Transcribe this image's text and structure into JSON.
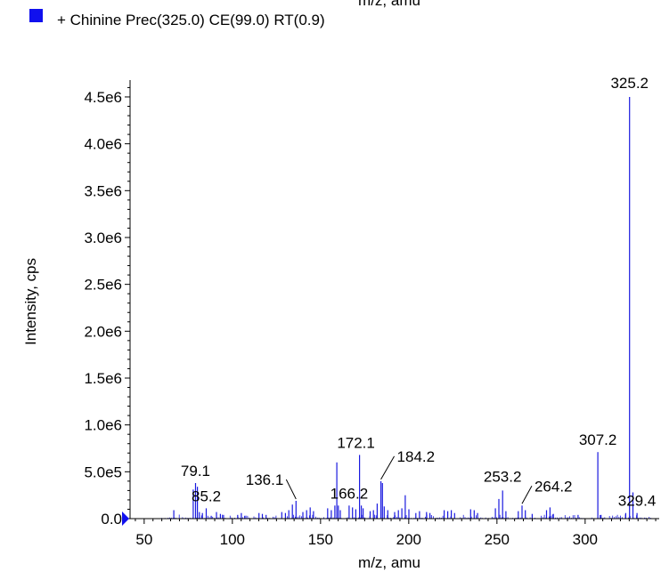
{
  "top_cut_label": "m/z, amu",
  "legend": {
    "swatch_color": "#1010ee",
    "label": "+ Chinine Prec(325.0) CE(99.0) RT(0.9)"
  },
  "colors": {
    "series": "#1a1adf",
    "axis": "#000000",
    "marker": "#1010ee"
  },
  "chart_data": {
    "type": "bar",
    "title": "",
    "xlabel": "m/z, amu",
    "ylabel": "Intensity, cps",
    "xlim": [
      42,
      342
    ],
    "ylim": [
      0,
      4680000
    ],
    "grid": false,
    "x_ticks": [
      50,
      100,
      150,
      200,
      250,
      300
    ],
    "x_tick_labels": [
      "50",
      "100",
      "150",
      "200",
      "250",
      "300"
    ],
    "y_ticks": [
      0,
      500000,
      1000000,
      1500000,
      2000000,
      2500000,
      3000000,
      3500000,
      4000000,
      4500000
    ],
    "y_tick_labels": [
      "0.0",
      "5.0e5",
      "1.0e6",
      "1.5e6",
      "2.0e6",
      "2.5e6",
      "3.0e6",
      "3.5e6",
      "4.0e6",
      "4.5e6"
    ],
    "peaks": [
      {
        "mz": 66.8,
        "i": 90000
      },
      {
        "mz": 77.8,
        "i": 310000
      },
      {
        "mz": 79.1,
        "i": 380000
      },
      {
        "mz": 80.2,
        "i": 340000
      },
      {
        "mz": 81.3,
        "i": 70000
      },
      {
        "mz": 83.0,
        "i": 60000
      },
      {
        "mz": 85.2,
        "i": 110000
      },
      {
        "mz": 88.0,
        "i": 30000
      },
      {
        "mz": 91.0,
        "i": 70000
      },
      {
        "mz": 93.2,
        "i": 50000
      },
      {
        "mz": 95.0,
        "i": 40000
      },
      {
        "mz": 103.0,
        "i": 40000
      },
      {
        "mz": 105.1,
        "i": 60000
      },
      {
        "mz": 107.0,
        "i": 30000
      },
      {
        "mz": 115.1,
        "i": 60000
      },
      {
        "mz": 117.0,
        "i": 50000
      },
      {
        "mz": 119.1,
        "i": 40000
      },
      {
        "mz": 128.0,
        "i": 70000
      },
      {
        "mz": 130.1,
        "i": 60000
      },
      {
        "mz": 132.0,
        "i": 90000
      },
      {
        "mz": 134.0,
        "i": 150000
      },
      {
        "mz": 136.1,
        "i": 190000
      },
      {
        "mz": 140.0,
        "i": 70000
      },
      {
        "mz": 142.1,
        "i": 90000
      },
      {
        "mz": 144.1,
        "i": 120000
      },
      {
        "mz": 146.0,
        "i": 80000
      },
      {
        "mz": 154.0,
        "i": 110000
      },
      {
        "mz": 156.1,
        "i": 90000
      },
      {
        "mz": 158.1,
        "i": 140000
      },
      {
        "mz": 159.2,
        "i": 600000
      },
      {
        "mz": 160.1,
        "i": 140000
      },
      {
        "mz": 161.2,
        "i": 90000
      },
      {
        "mz": 166.2,
        "i": 140000
      },
      {
        "mz": 168.1,
        "i": 120000
      },
      {
        "mz": 170.0,
        "i": 100000
      },
      {
        "mz": 172.1,
        "i": 680000
      },
      {
        "mz": 173.1,
        "i": 140000
      },
      {
        "mz": 174.1,
        "i": 110000
      },
      {
        "mz": 178.1,
        "i": 80000
      },
      {
        "mz": 180.0,
        "i": 90000
      },
      {
        "mz": 182.1,
        "i": 160000
      },
      {
        "mz": 184.2,
        "i": 400000
      },
      {
        "mz": 185.1,
        "i": 380000
      },
      {
        "mz": 186.1,
        "i": 130000
      },
      {
        "mz": 188.1,
        "i": 90000
      },
      {
        "mz": 192.0,
        "i": 70000
      },
      {
        "mz": 194.1,
        "i": 90000
      },
      {
        "mz": 196.1,
        "i": 110000
      },
      {
        "mz": 198.0,
        "i": 250000
      },
      {
        "mz": 200.1,
        "i": 100000
      },
      {
        "mz": 204.0,
        "i": 60000
      },
      {
        "mz": 206.1,
        "i": 80000
      },
      {
        "mz": 210.1,
        "i": 70000
      },
      {
        "mz": 212.0,
        "i": 60000
      },
      {
        "mz": 220.1,
        "i": 90000
      },
      {
        "mz": 222.1,
        "i": 80000
      },
      {
        "mz": 224.1,
        "i": 90000
      },
      {
        "mz": 226.0,
        "i": 60000
      },
      {
        "mz": 235.1,
        "i": 100000
      },
      {
        "mz": 237.1,
        "i": 90000
      },
      {
        "mz": 239.0,
        "i": 60000
      },
      {
        "mz": 249.1,
        "i": 110000
      },
      {
        "mz": 251.1,
        "i": 210000
      },
      {
        "mz": 253.2,
        "i": 300000
      },
      {
        "mz": 255.1,
        "i": 80000
      },
      {
        "mz": 262.1,
        "i": 80000
      },
      {
        "mz": 264.2,
        "i": 140000
      },
      {
        "mz": 266.1,
        "i": 90000
      },
      {
        "mz": 270.0,
        "i": 50000
      },
      {
        "mz": 278.1,
        "i": 90000
      },
      {
        "mz": 280.1,
        "i": 120000
      },
      {
        "mz": 282.0,
        "i": 50000
      },
      {
        "mz": 296.0,
        "i": 40000
      },
      {
        "mz": 307.2,
        "i": 710000
      },
      {
        "mz": 309.0,
        "i": 40000
      },
      {
        "mz": 323.0,
        "i": 60000
      },
      {
        "mz": 325.2,
        "i": 4500000
      },
      {
        "mz": 327.1,
        "i": 280000
      },
      {
        "mz": 329.4,
        "i": 60000
      }
    ],
    "noise": {
      "from": 60,
      "to": 338,
      "step": 0.9,
      "max": 45000
    },
    "annotations": [
      {
        "mz": 79.1,
        "label": "79.1"
      },
      {
        "mz": 85.2,
        "label": "85.2"
      },
      {
        "mz": 136.1,
        "label": "136.1"
      },
      {
        "mz": 166.2,
        "label": "166.2"
      },
      {
        "mz": 172.1,
        "label": "172.1"
      },
      {
        "mz": 184.2,
        "label": "184.2"
      },
      {
        "mz": 253.2,
        "label": "253.2"
      },
      {
        "mz": 264.2,
        "label": "264.2"
      },
      {
        "mz": 307.2,
        "label": "307.2"
      },
      {
        "mz": 325.2,
        "label": "325.2"
      },
      {
        "mz": 329.4,
        "label": "329.4"
      }
    ]
  }
}
